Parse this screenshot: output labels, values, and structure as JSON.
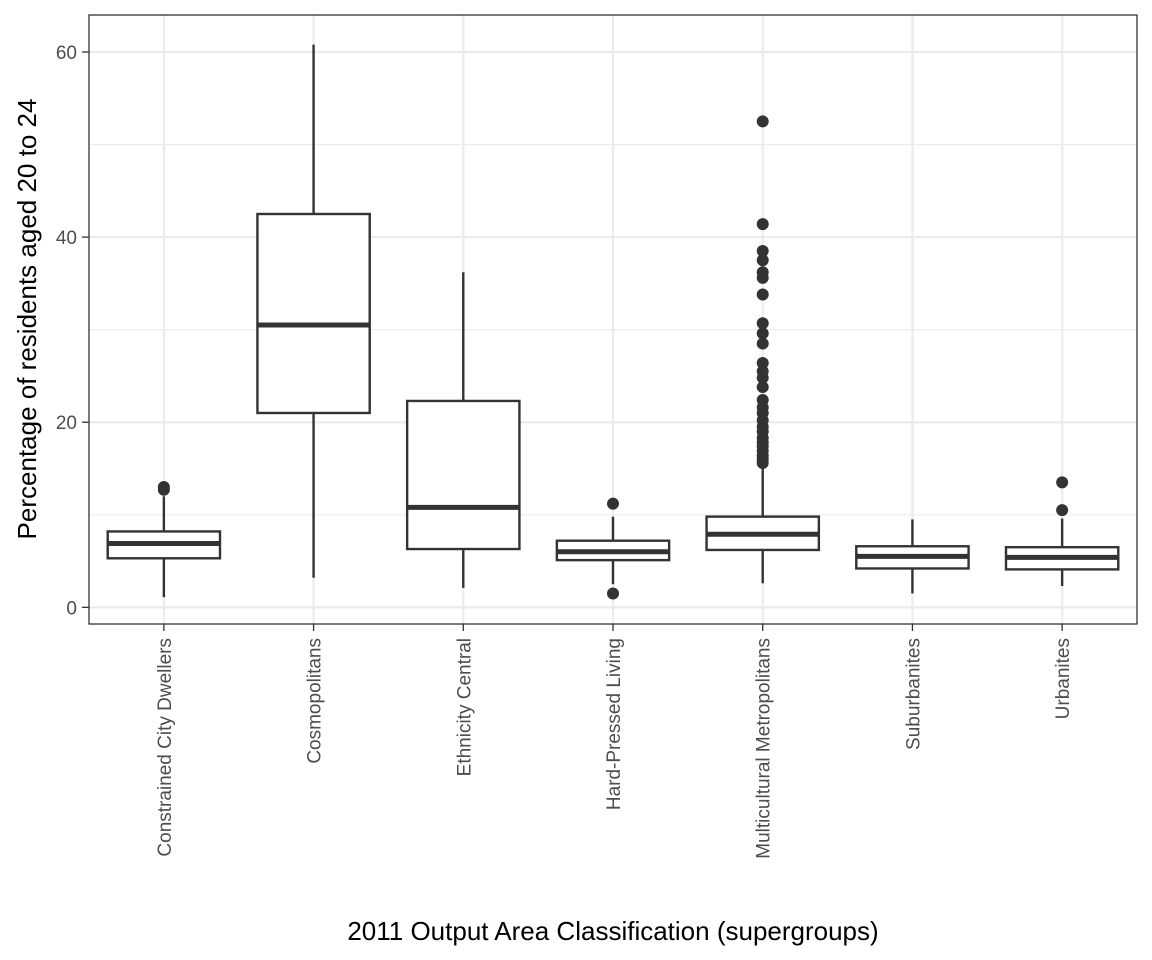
{
  "chart_data": {
    "type": "box",
    "title": "",
    "xlabel": "2011 Output Area Classification (supergroups)",
    "ylabel": "Percentage of residents aged 20 to 24",
    "ylim": [
      -1.8,
      64
    ],
    "yticks": [
      0,
      20,
      40,
      60
    ],
    "ytick_labels": [
      "0",
      "20",
      "40",
      "60"
    ],
    "grid": true,
    "categories": [
      "Constrained City Dwellers",
      "Cosmopolitans",
      "Ethnicity Central",
      "Hard-Pressed Living",
      "Multicultural Metropolitans",
      "Suburbanites",
      "Urbanites"
    ],
    "boxes": [
      {
        "category": "Constrained City Dwellers",
        "whisker_low": 1.1,
        "q1": 5.3,
        "median": 6.9,
        "q3": 8.2,
        "whisker_high": 12.0,
        "outliers": [
          12.7,
          13.0
        ]
      },
      {
        "category": "Cosmopolitans",
        "whisker_low": 3.2,
        "q1": 21.0,
        "median": 30.5,
        "q3": 42.5,
        "whisker_high": 60.8,
        "outliers": []
      },
      {
        "category": "Ethnicity Central",
        "whisker_low": 2.1,
        "q1": 6.3,
        "median": 10.8,
        "q3": 22.3,
        "whisker_high": 36.2,
        "outliers": []
      },
      {
        "category": "Hard-Pressed Living",
        "whisker_low": 2.5,
        "q1": 5.1,
        "median": 6.0,
        "q3": 7.2,
        "whisker_high": 9.8,
        "outliers": [
          1.5,
          11.2
        ]
      },
      {
        "category": "Multicultural Metropolitans",
        "whisker_low": 2.6,
        "q1": 6.2,
        "median": 7.9,
        "q3": 9.8,
        "whisker_high": 15.3,
        "outliers": [
          15.6,
          16.0,
          16.4,
          16.9,
          17.4,
          17.8,
          18.3,
          19.0,
          19.5,
          20.2,
          21.0,
          21.6,
          22.4,
          23.8,
          24.8,
          25.5,
          26.4,
          28.5,
          29.6,
          30.7,
          33.8,
          35.6,
          36.2,
          37.5,
          38.5,
          41.4,
          52.5
        ]
      },
      {
        "category": "Suburbanites",
        "whisker_low": 1.5,
        "q1": 4.2,
        "median": 5.5,
        "q3": 6.6,
        "whisker_high": 9.5,
        "outliers": []
      },
      {
        "category": "Urbanites",
        "whisker_low": 2.3,
        "q1": 4.1,
        "median": 5.4,
        "q3": 6.5,
        "whisker_high": 9.6,
        "outliers": [
          10.5,
          13.5
        ]
      }
    ]
  }
}
